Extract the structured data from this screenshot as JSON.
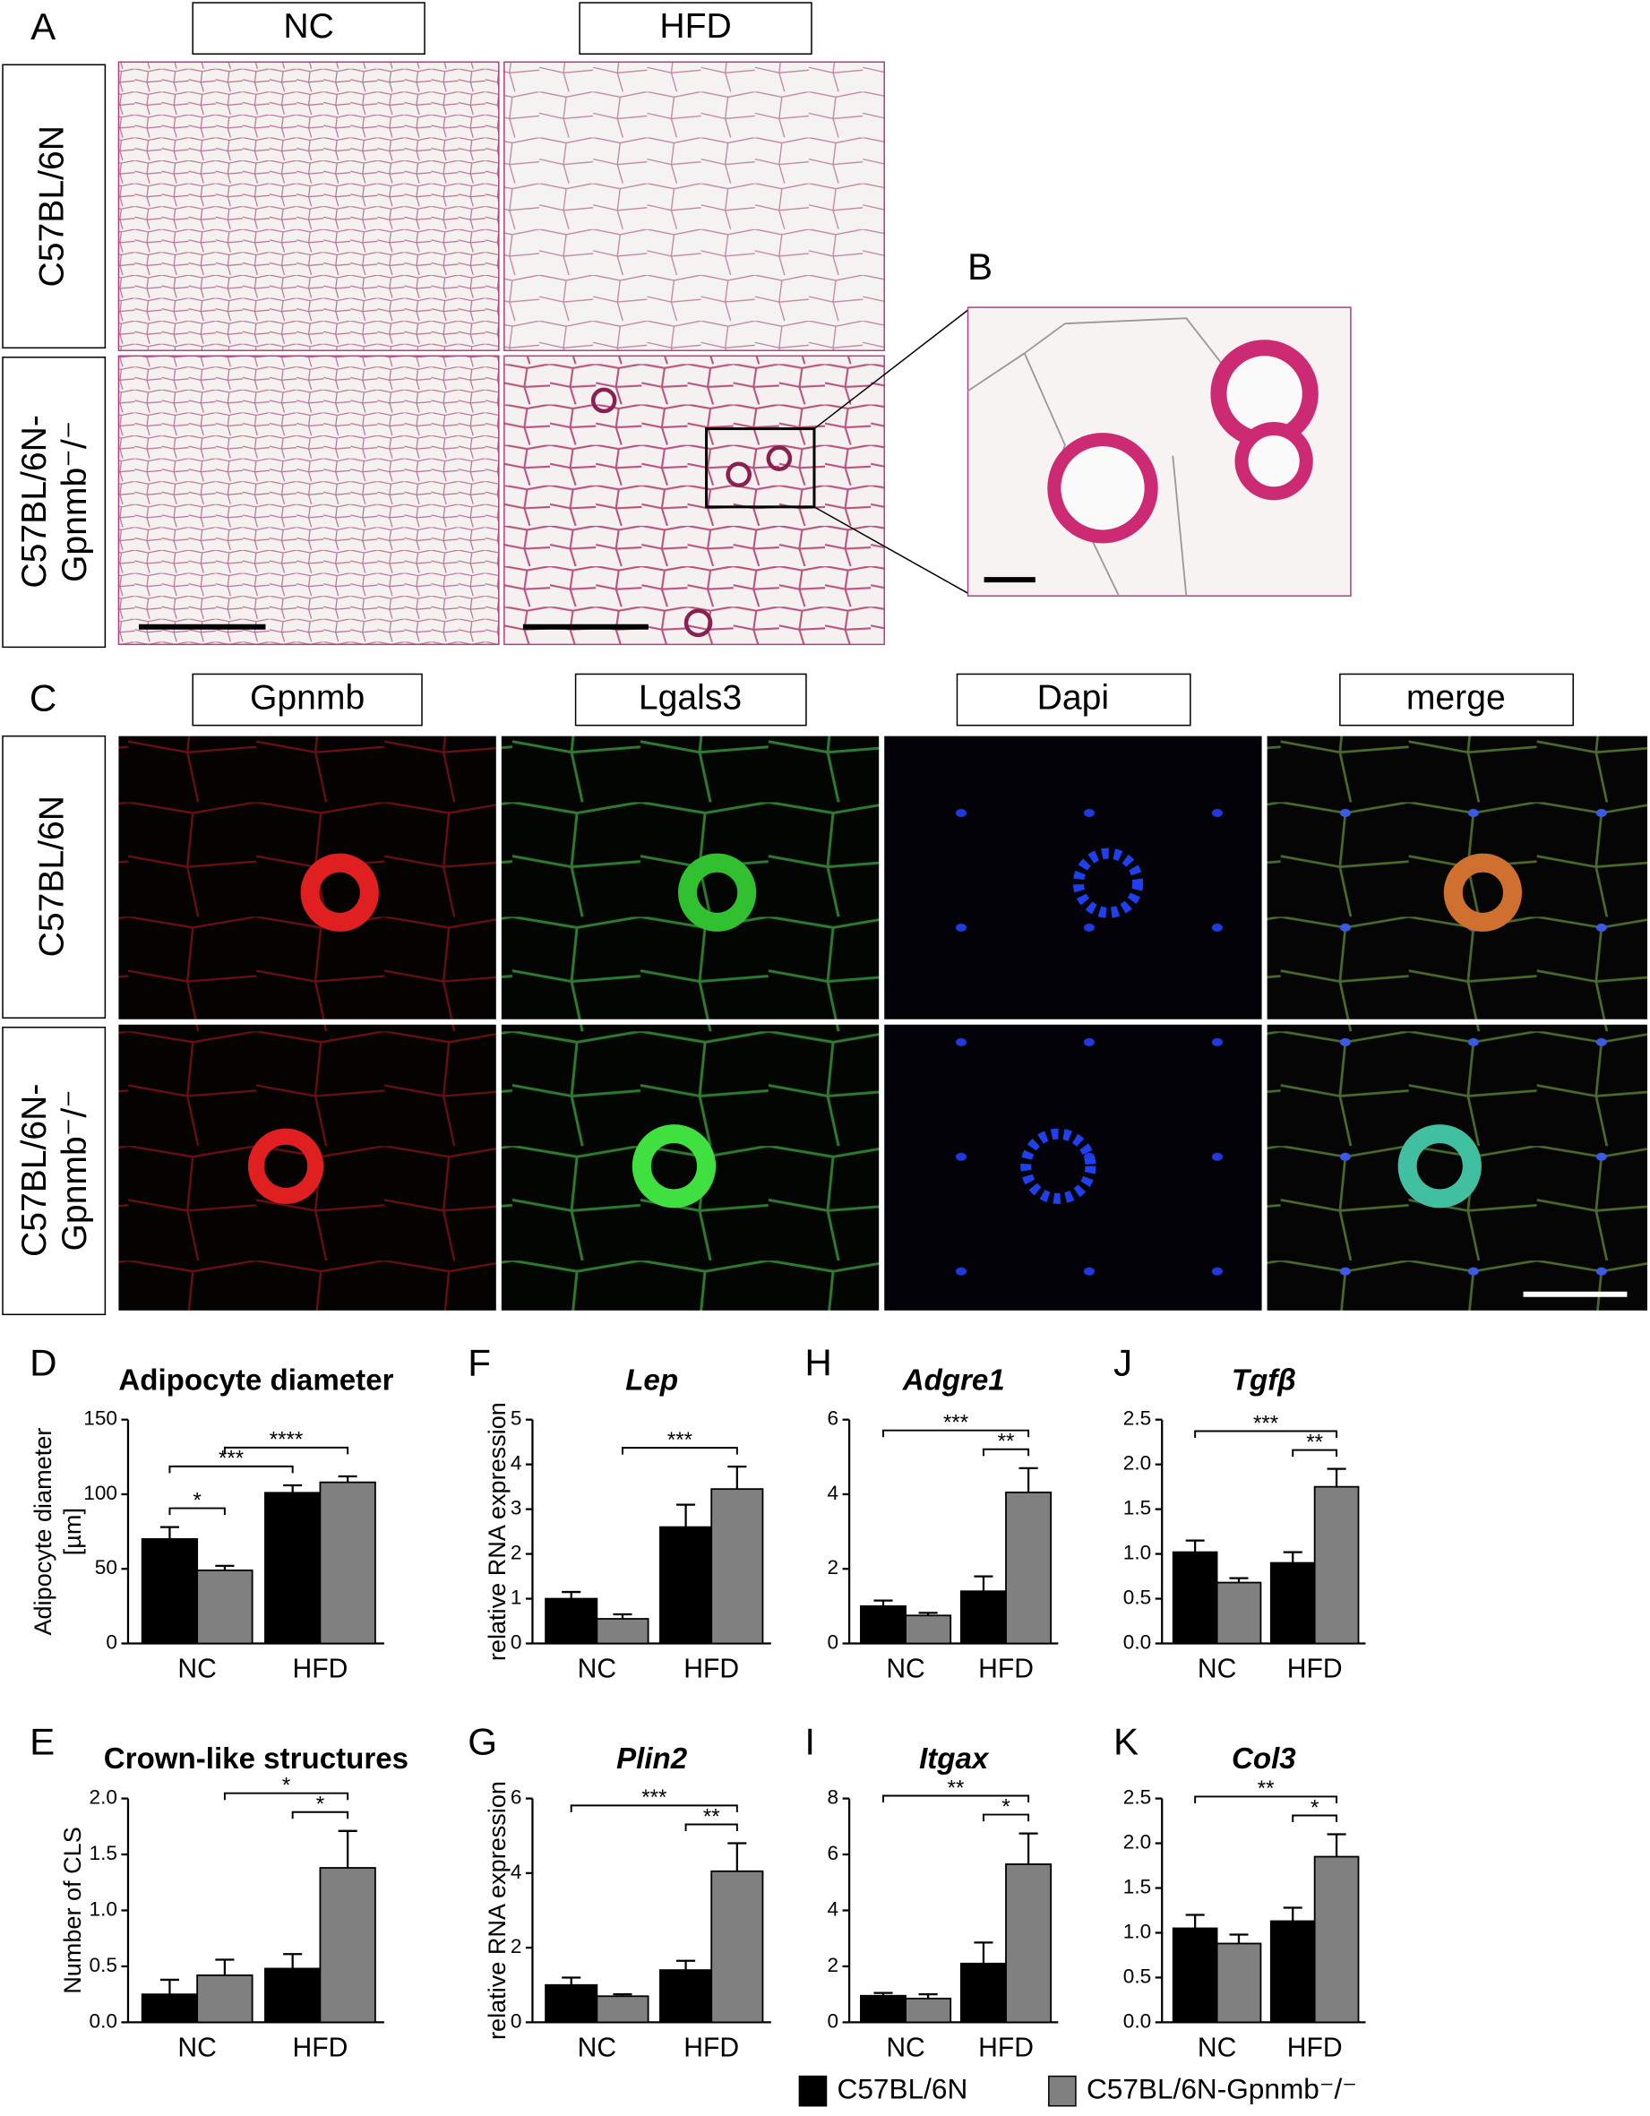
{
  "figure": {
    "panel_a": {
      "letter": "A",
      "columns": [
        "NC",
        "HFD"
      ],
      "rows": [
        [
          "C57BL/6N"
        ],
        [
          "C57BL/6N-",
          "Gpnmb⁻/⁻"
        ]
      ]
    },
    "panel_b": {
      "letter": "B"
    },
    "panel_c": {
      "letter": "C",
      "columns": [
        "Gpnmb",
        "Lgals3",
        "Dapi",
        "merge"
      ],
      "rows": [
        [
          "C57BL/6N"
        ],
        [
          "C57BL/6N-",
          "Gpnmb⁻/⁻"
        ]
      ]
    }
  },
  "legend": [
    {
      "name": "C57BL/6N",
      "color": "#000000"
    },
    {
      "name": "C57BL/6N-Gpnmb⁻/⁻",
      "color": "#808080"
    }
  ],
  "chart_data": [
    {
      "type": "bar",
      "letter": "D",
      "title": "Adipocyte diameter",
      "italic_title": false,
      "ylabel": [
        "Adipocyte diameter",
        "[µm]"
      ],
      "categories": [
        "NC",
        "HFD"
      ],
      "ylim": [
        0,
        150
      ],
      "yticks": [
        0,
        50,
        100,
        150
      ],
      "series": [
        {
          "color": "#000000",
          "values": [
            70,
            101
          ],
          "errors": [
            8,
            5
          ]
        },
        {
          "color": "#808080",
          "values": [
            49,
            108
          ],
          "errors": [
            3,
            4
          ]
        }
      ],
      "brackets": [
        {
          "label": "****",
          "from": [
            0,
            1
          ],
          "to": [
            1,
            1
          ]
        },
        {
          "label": "***",
          "from": [
            0,
            0
          ],
          "to": [
            1,
            0
          ]
        },
        {
          "label": "*",
          "from": [
            0,
            0
          ],
          "to": [
            0,
            1
          ]
        }
      ]
    },
    {
      "type": "bar",
      "letter": "F",
      "title": "Lep",
      "italic_title": true,
      "ylabel": [
        "relative RNA expression"
      ],
      "categories": [
        "NC",
        "HFD"
      ],
      "ylim": [
        0,
        5
      ],
      "yticks": [
        0,
        1,
        2,
        3,
        4,
        5
      ],
      "series": [
        {
          "color": "#000000",
          "values": [
            1.0,
            2.6
          ],
          "errors": [
            0.15,
            0.5
          ]
        },
        {
          "color": "#808080",
          "values": [
            0.55,
            3.45
          ],
          "errors": [
            0.1,
            0.5
          ]
        }
      ],
      "brackets": [
        {
          "label": "***",
          "from": [
            0,
            1
          ],
          "to": [
            1,
            1
          ]
        }
      ]
    },
    {
      "type": "bar",
      "letter": "H",
      "title": "Adgre1",
      "italic_title": true,
      "categories": [
        "NC",
        "HFD"
      ],
      "ylim": [
        0,
        6
      ],
      "yticks": [
        0,
        2,
        4,
        6
      ],
      "series": [
        {
          "color": "#000000",
          "values": [
            1.0,
            1.4
          ],
          "errors": [
            0.15,
            0.4
          ]
        },
        {
          "color": "#808080",
          "values": [
            0.75,
            4.05
          ],
          "errors": [
            0.07,
            0.65
          ]
        }
      ],
      "brackets": [
        {
          "label": "***",
          "from": [
            0,
            0
          ],
          "to": [
            1,
            1
          ]
        },
        {
          "label": "**",
          "from": [
            1,
            0
          ],
          "to": [
            1,
            1
          ]
        }
      ]
    },
    {
      "type": "bar",
      "letter": "J",
      "title": "Tgfβ",
      "italic_title": true,
      "categories": [
        "NC",
        "HFD"
      ],
      "ylim": [
        0,
        2.5
      ],
      "yticks": [
        {
          "value": 0,
          "label": "0.0"
        },
        0.5,
        {
          "value": 1,
          "label": "1.0"
        },
        1.5,
        {
          "value": 2,
          "label": "2.0"
        },
        2.5
      ],
      "series": [
        {
          "color": "#000000",
          "values": [
            1.02,
            0.9
          ],
          "errors": [
            0.13,
            0.12
          ]
        },
        {
          "color": "#808080",
          "values": [
            0.68,
            1.75
          ],
          "errors": [
            0.05,
            0.2
          ]
        }
      ],
      "brackets": [
        {
          "label": "***",
          "from": [
            0,
            0
          ],
          "to": [
            1,
            1
          ]
        },
        {
          "label": "**",
          "from": [
            1,
            0
          ],
          "to": [
            1,
            1
          ]
        }
      ]
    },
    {
      "type": "bar",
      "letter": "E",
      "title": "Crown-like structures",
      "italic_title": false,
      "ylabel": [
        "Number of CLS"
      ],
      "categories": [
        "NC",
        "HFD"
      ],
      "ylim": [
        0,
        2
      ],
      "yticks": [
        {
          "value": 0,
          "label": "0.0"
        },
        0.5,
        {
          "value": 1,
          "label": "1.0"
        },
        1.5,
        {
          "value": 2,
          "label": "2.0"
        }
      ],
      "series": [
        {
          "color": "#000000",
          "values": [
            0.25,
            0.48
          ],
          "errors": [
            0.13,
            0.13
          ]
        },
        {
          "color": "#808080",
          "values": [
            0.42,
            1.38
          ],
          "errors": [
            0.14,
            0.33
          ]
        }
      ],
      "brackets": [
        {
          "label": "*",
          "from": [
            0,
            1
          ],
          "to": [
            1,
            1
          ]
        },
        {
          "label": "*",
          "from": [
            1,
            0
          ],
          "to": [
            1,
            1
          ]
        }
      ]
    },
    {
      "type": "bar",
      "letter": "G",
      "title": "Plin2",
      "italic_title": true,
      "ylabel": [
        "relative RNA expression"
      ],
      "categories": [
        "NC",
        "HFD"
      ],
      "ylim": [
        0,
        6
      ],
      "yticks": [
        0,
        2,
        4,
        6
      ],
      "series": [
        {
          "color": "#000000",
          "values": [
            1.0,
            1.4
          ],
          "errors": [
            0.2,
            0.25
          ]
        },
        {
          "color": "#808080",
          "values": [
            0.7,
            4.05
          ],
          "errors": [
            0.05,
            0.75
          ]
        }
      ],
      "brackets": [
        {
          "label": "***",
          "from": [
            0,
            0
          ],
          "to": [
            1,
            1
          ]
        },
        {
          "label": "**",
          "from": [
            1,
            0
          ],
          "to": [
            1,
            1
          ]
        }
      ]
    },
    {
      "type": "bar",
      "letter": "I",
      "title": "Itgax",
      "italic_title": true,
      "categories": [
        "NC",
        "HFD"
      ],
      "ylim": [
        0,
        8
      ],
      "yticks": [
        0,
        2,
        4,
        6,
        8
      ],
      "series": [
        {
          "color": "#000000",
          "values": [
            0.95,
            2.1
          ],
          "errors": [
            0.1,
            0.75
          ]
        },
        {
          "color": "#808080",
          "values": [
            0.85,
            5.65
          ],
          "errors": [
            0.15,
            1.1
          ]
        }
      ],
      "brackets": [
        {
          "label": "**",
          "from": [
            0,
            0
          ],
          "to": [
            1,
            1
          ]
        },
        {
          "label": "*",
          "from": [
            1,
            0
          ],
          "to": [
            1,
            1
          ]
        }
      ]
    },
    {
      "type": "bar",
      "letter": "K",
      "title": "Col3",
      "italic_title": true,
      "categories": [
        "NC",
        "HFD"
      ],
      "ylim": [
        0,
        2.5
      ],
      "yticks": [
        {
          "value": 0,
          "label": "0.0"
        },
        0.5,
        {
          "value": 1,
          "label": "1.0"
        },
        1.5,
        {
          "value": 2,
          "label": "2.0"
        },
        2.5
      ],
      "series": [
        {
          "color": "#000000",
          "values": [
            1.05,
            1.13
          ],
          "errors": [
            0.15,
            0.15
          ]
        },
        {
          "color": "#808080",
          "values": [
            0.88,
            1.85
          ],
          "errors": [
            0.1,
            0.25
          ]
        }
      ],
      "brackets": [
        {
          "label": "**",
          "from": [
            0,
            0
          ],
          "to": [
            1,
            1
          ]
        },
        {
          "label": "*",
          "from": [
            1,
            0
          ],
          "to": [
            1,
            1
          ]
        }
      ]
    }
  ]
}
